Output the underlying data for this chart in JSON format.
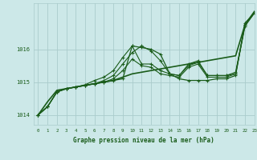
{
  "xlabel": "Graphe pression niveau de la mer (hPa)",
  "ylim": [
    1013.7,
    1017.4
  ],
  "xlim": [
    -0.5,
    23
  ],
  "yticks": [
    1014,
    1015,
    1016
  ],
  "xticks": [
    0,
    1,
    2,
    3,
    4,
    5,
    6,
    7,
    8,
    9,
    10,
    11,
    12,
    13,
    14,
    15,
    16,
    17,
    18,
    19,
    20,
    21,
    22,
    23
  ],
  "bg_color": "#cce8e8",
  "grid_color": "#aacccc",
  "line_color": "#1a5c1a",
  "marker": "+",
  "series": [
    [
      1014.0,
      1014.25,
      1014.7,
      1014.8,
      1014.85,
      1014.9,
      1014.95,
      1015.05,
      1015.2,
      1015.55,
      1015.9,
      1016.1,
      1015.95,
      1015.65,
      1015.25,
      1015.2,
      1015.55,
      1015.65,
      1015.2,
      1015.2,
      1015.2,
      1015.3,
      1016.75,
      1017.1
    ],
    [
      1014.0,
      1014.25,
      1014.7,
      1014.8,
      1014.85,
      1014.9,
      1014.95,
      1015.0,
      1015.1,
      1015.35,
      1015.7,
      1015.5,
      1015.45,
      1015.25,
      1015.2,
      1015.15,
      1015.45,
      1015.55,
      1015.15,
      1015.15,
      1015.15,
      1015.25,
      1016.7,
      1017.1
    ],
    [
      1014.0,
      1014.25,
      1014.7,
      1014.8,
      1014.85,
      1014.9,
      1014.95,
      1015.0,
      1015.05,
      1015.1,
      1016.1,
      1016.05,
      1016.0,
      1015.85,
      1015.25,
      1015.1,
      1015.05,
      1015.05,
      1015.05,
      1015.1,
      1015.1,
      1015.2,
      1016.8,
      1017.1
    ],
    [
      1014.0,
      1014.25,
      1014.7,
      1014.8,
      1014.85,
      1014.92,
      1015.05,
      1015.15,
      1015.35,
      1015.75,
      1016.1,
      1015.55,
      1015.55,
      1015.35,
      1015.25,
      1015.2,
      1015.5,
      1015.6,
      1015.2,
      1015.2,
      1015.2,
      1015.25,
      1016.75,
      1017.1
    ],
    [
      1014.0,
      1014.4,
      1014.75,
      1014.8,
      1014.85,
      1014.9,
      1014.95,
      1015.0,
      1015.05,
      1015.15,
      1015.25,
      1015.3,
      1015.35,
      1015.4,
      1015.45,
      1015.5,
      1015.55,
      1015.6,
      1015.65,
      1015.7,
      1015.75,
      1015.8,
      1016.75,
      1017.15
    ]
  ],
  "series_styles": [
    {
      "linestyle": "-",
      "linewidth": 0.8,
      "markersize": 3,
      "has_marker": true
    },
    {
      "linestyle": "-",
      "linewidth": 0.8,
      "markersize": 3,
      "has_marker": true
    },
    {
      "linestyle": "-",
      "linewidth": 0.9,
      "markersize": 3,
      "has_marker": true
    },
    {
      "linestyle": "-",
      "linewidth": 0.8,
      "markersize": 3,
      "has_marker": true
    },
    {
      "linestyle": "-",
      "linewidth": 1.2,
      "markersize": 0,
      "has_marker": false
    }
  ]
}
